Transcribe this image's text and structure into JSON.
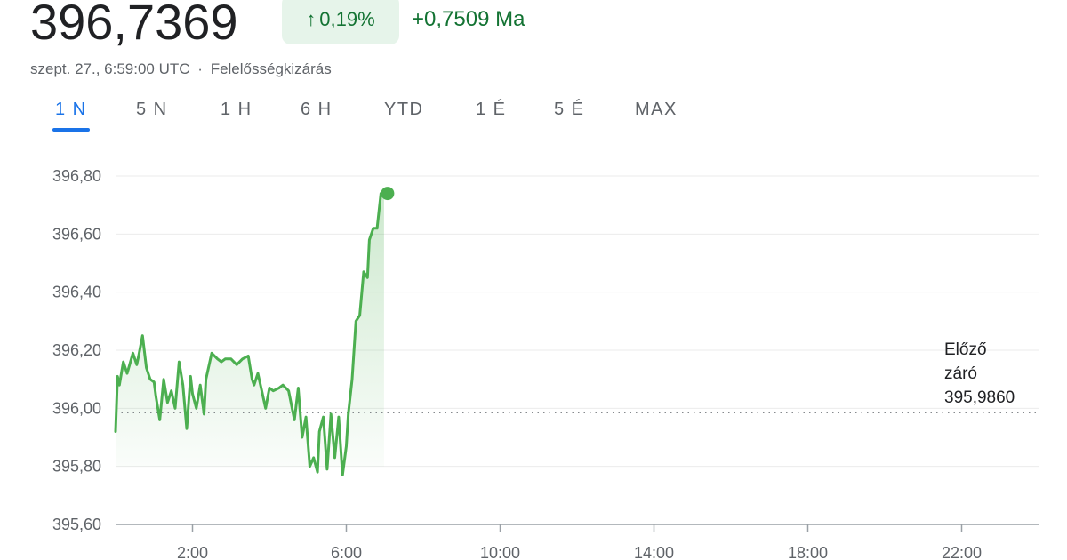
{
  "header": {
    "price": "396,7369",
    "change_percent": "0,19%",
    "change_arrow": "↑",
    "change_value": "+0,7509 Ma",
    "timestamp": "szept. 27., 6:59:00 UTC",
    "separator": "·",
    "disclaimer": "Felelősségkizárás"
  },
  "tabs": [
    {
      "label": "1 N",
      "active": true
    },
    {
      "label": "5 N",
      "active": false
    },
    {
      "label": "1 H",
      "active": false
    },
    {
      "label": "6 H",
      "active": false
    },
    {
      "label": "YTD",
      "active": false
    },
    {
      "label": "1 É",
      "active": false
    },
    {
      "label": "5 É",
      "active": false
    },
    {
      "label": "MAX",
      "active": false
    }
  ],
  "previous_close": {
    "line1": "Előző",
    "line2": "záró",
    "value": "395,9860"
  },
  "colors": {
    "line": "#4caf50",
    "positive": "#137333",
    "accent": "#1a73e8"
  },
  "chart_data": {
    "type": "line",
    "x_unit": "hours (UTC)",
    "xlim": [
      0,
      24
    ],
    "ylim": [
      395.6,
      396.8
    ],
    "yticks": [
      396.8,
      396.6,
      396.4,
      396.2,
      396.0,
      395.8,
      395.6
    ],
    "ytick_labels": [
      "396,80",
      "396,60",
      "396,40",
      "396,20",
      "396,00",
      "395,80",
      "395,60"
    ],
    "xticks": [
      2,
      6,
      10,
      14,
      18,
      22
    ],
    "xtick_labels": [
      "2:00",
      "6:00",
      "10:00",
      "14:00",
      "18:00",
      "22:00"
    ],
    "previous_close": 395.986,
    "grid": true,
    "series": [
      {
        "x": [
          0.0,
          0.05,
          0.1,
          0.2,
          0.3,
          0.45,
          0.55,
          0.6,
          0.7,
          0.8,
          0.9,
          1.0,
          1.05,
          1.15,
          1.25,
          1.35,
          1.45,
          1.55,
          1.65,
          1.75,
          1.85,
          1.95,
          2.0,
          2.1,
          2.2,
          2.3,
          2.35,
          2.5,
          2.65,
          2.75,
          2.85,
          3.0,
          3.15,
          3.3,
          3.45,
          3.55,
          3.6,
          3.7,
          3.8,
          3.9,
          4.0,
          4.1,
          4.25,
          4.35,
          4.5,
          4.65,
          4.75,
          4.85,
          4.95,
          5.05,
          5.15,
          5.25,
          5.3,
          5.4,
          5.5,
          5.6,
          5.7,
          5.8,
          5.9,
          6.0,
          6.05,
          6.15,
          6.25,
          6.35,
          6.45,
          6.55,
          6.6,
          6.7,
          6.8,
          6.9,
          6.98
        ],
        "y": [
          395.92,
          396.11,
          396.08,
          396.16,
          396.12,
          396.19,
          396.15,
          396.18,
          396.25,
          396.14,
          396.1,
          396.09,
          396.04,
          395.96,
          396.1,
          396.02,
          396.06,
          396.0,
          396.16,
          396.08,
          395.93,
          396.11,
          396.05,
          396.0,
          396.08,
          395.98,
          396.1,
          396.19,
          396.17,
          396.16,
          396.17,
          396.17,
          396.15,
          396.17,
          396.18,
          396.1,
          396.08,
          396.12,
          396.06,
          396.0,
          396.07,
          396.06,
          396.07,
          396.08,
          396.06,
          395.96,
          396.07,
          395.9,
          395.97,
          395.8,
          395.83,
          395.78,
          395.92,
          395.97,
          395.79,
          395.98,
          395.83,
          395.97,
          395.77,
          395.87,
          395.98,
          396.1,
          396.3,
          396.32,
          396.47,
          396.45,
          396.58,
          396.62,
          396.62,
          396.74,
          396.74
        ]
      }
    ]
  }
}
